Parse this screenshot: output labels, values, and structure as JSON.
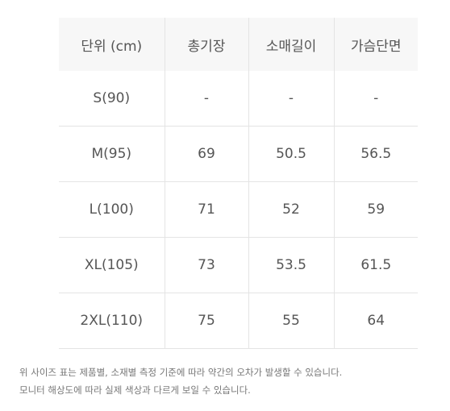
{
  "table": {
    "headers": [
      "단위 (cm)",
      "총기장",
      "소매길이",
      "가슴단면"
    ],
    "rows": [
      [
        "S(90)",
        "-",
        "-",
        "-"
      ],
      [
        "M(95)",
        "69",
        "50.5",
        "56.5"
      ],
      [
        "L(100)",
        "71",
        "52",
        "59"
      ],
      [
        "XL(105)",
        "73",
        "53.5",
        "61.5"
      ],
      [
        "2XL(110)",
        "75",
        "55",
        "64"
      ]
    ]
  },
  "notes": [
    "위 사이즈 표는 제품별, 소재별 측정 기준에 따라 약간의 오차가 발생할 수 있습니다.",
    "모니터 해상도에 따라 실제 색상과 다르게 보일 수 있습니다."
  ]
}
